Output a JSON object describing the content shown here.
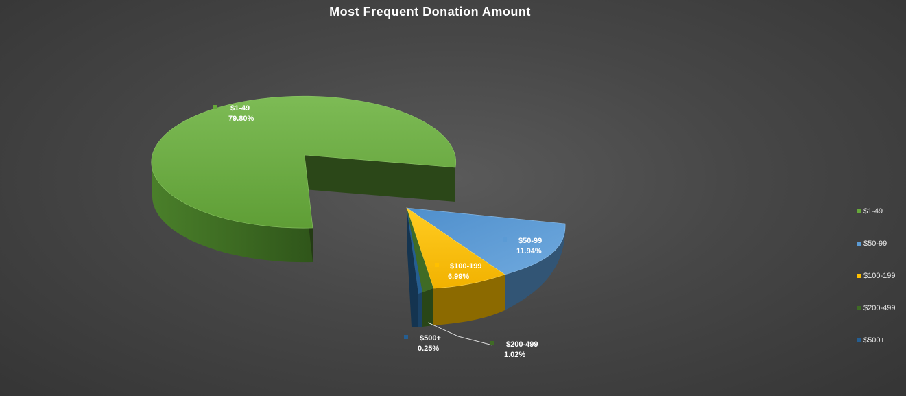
{
  "chart_data": {
    "type": "pie",
    "title": "Most Frequent Donation Amount",
    "slices": [
      {
        "label": "$1-49",
        "value": 79.8,
        "value_label": "79.80%",
        "color": "#66a83a"
      },
      {
        "label": "$50-99",
        "value": 11.94,
        "value_label": "11.94%",
        "color": "#5b9bd5"
      },
      {
        "label": "$100-199",
        "value": 6.99,
        "value_label": "6.99%",
        "color": "#ffc000"
      },
      {
        "label": "$200-499",
        "value": 1.02,
        "value_label": "1.02%",
        "color": "#3f6b25"
      },
      {
        "label": "$500+",
        "value": 0.25,
        "value_label": "0.25%",
        "color": "#255e91"
      }
    ],
    "legend_position": "right",
    "style": "3d-exploded"
  }
}
